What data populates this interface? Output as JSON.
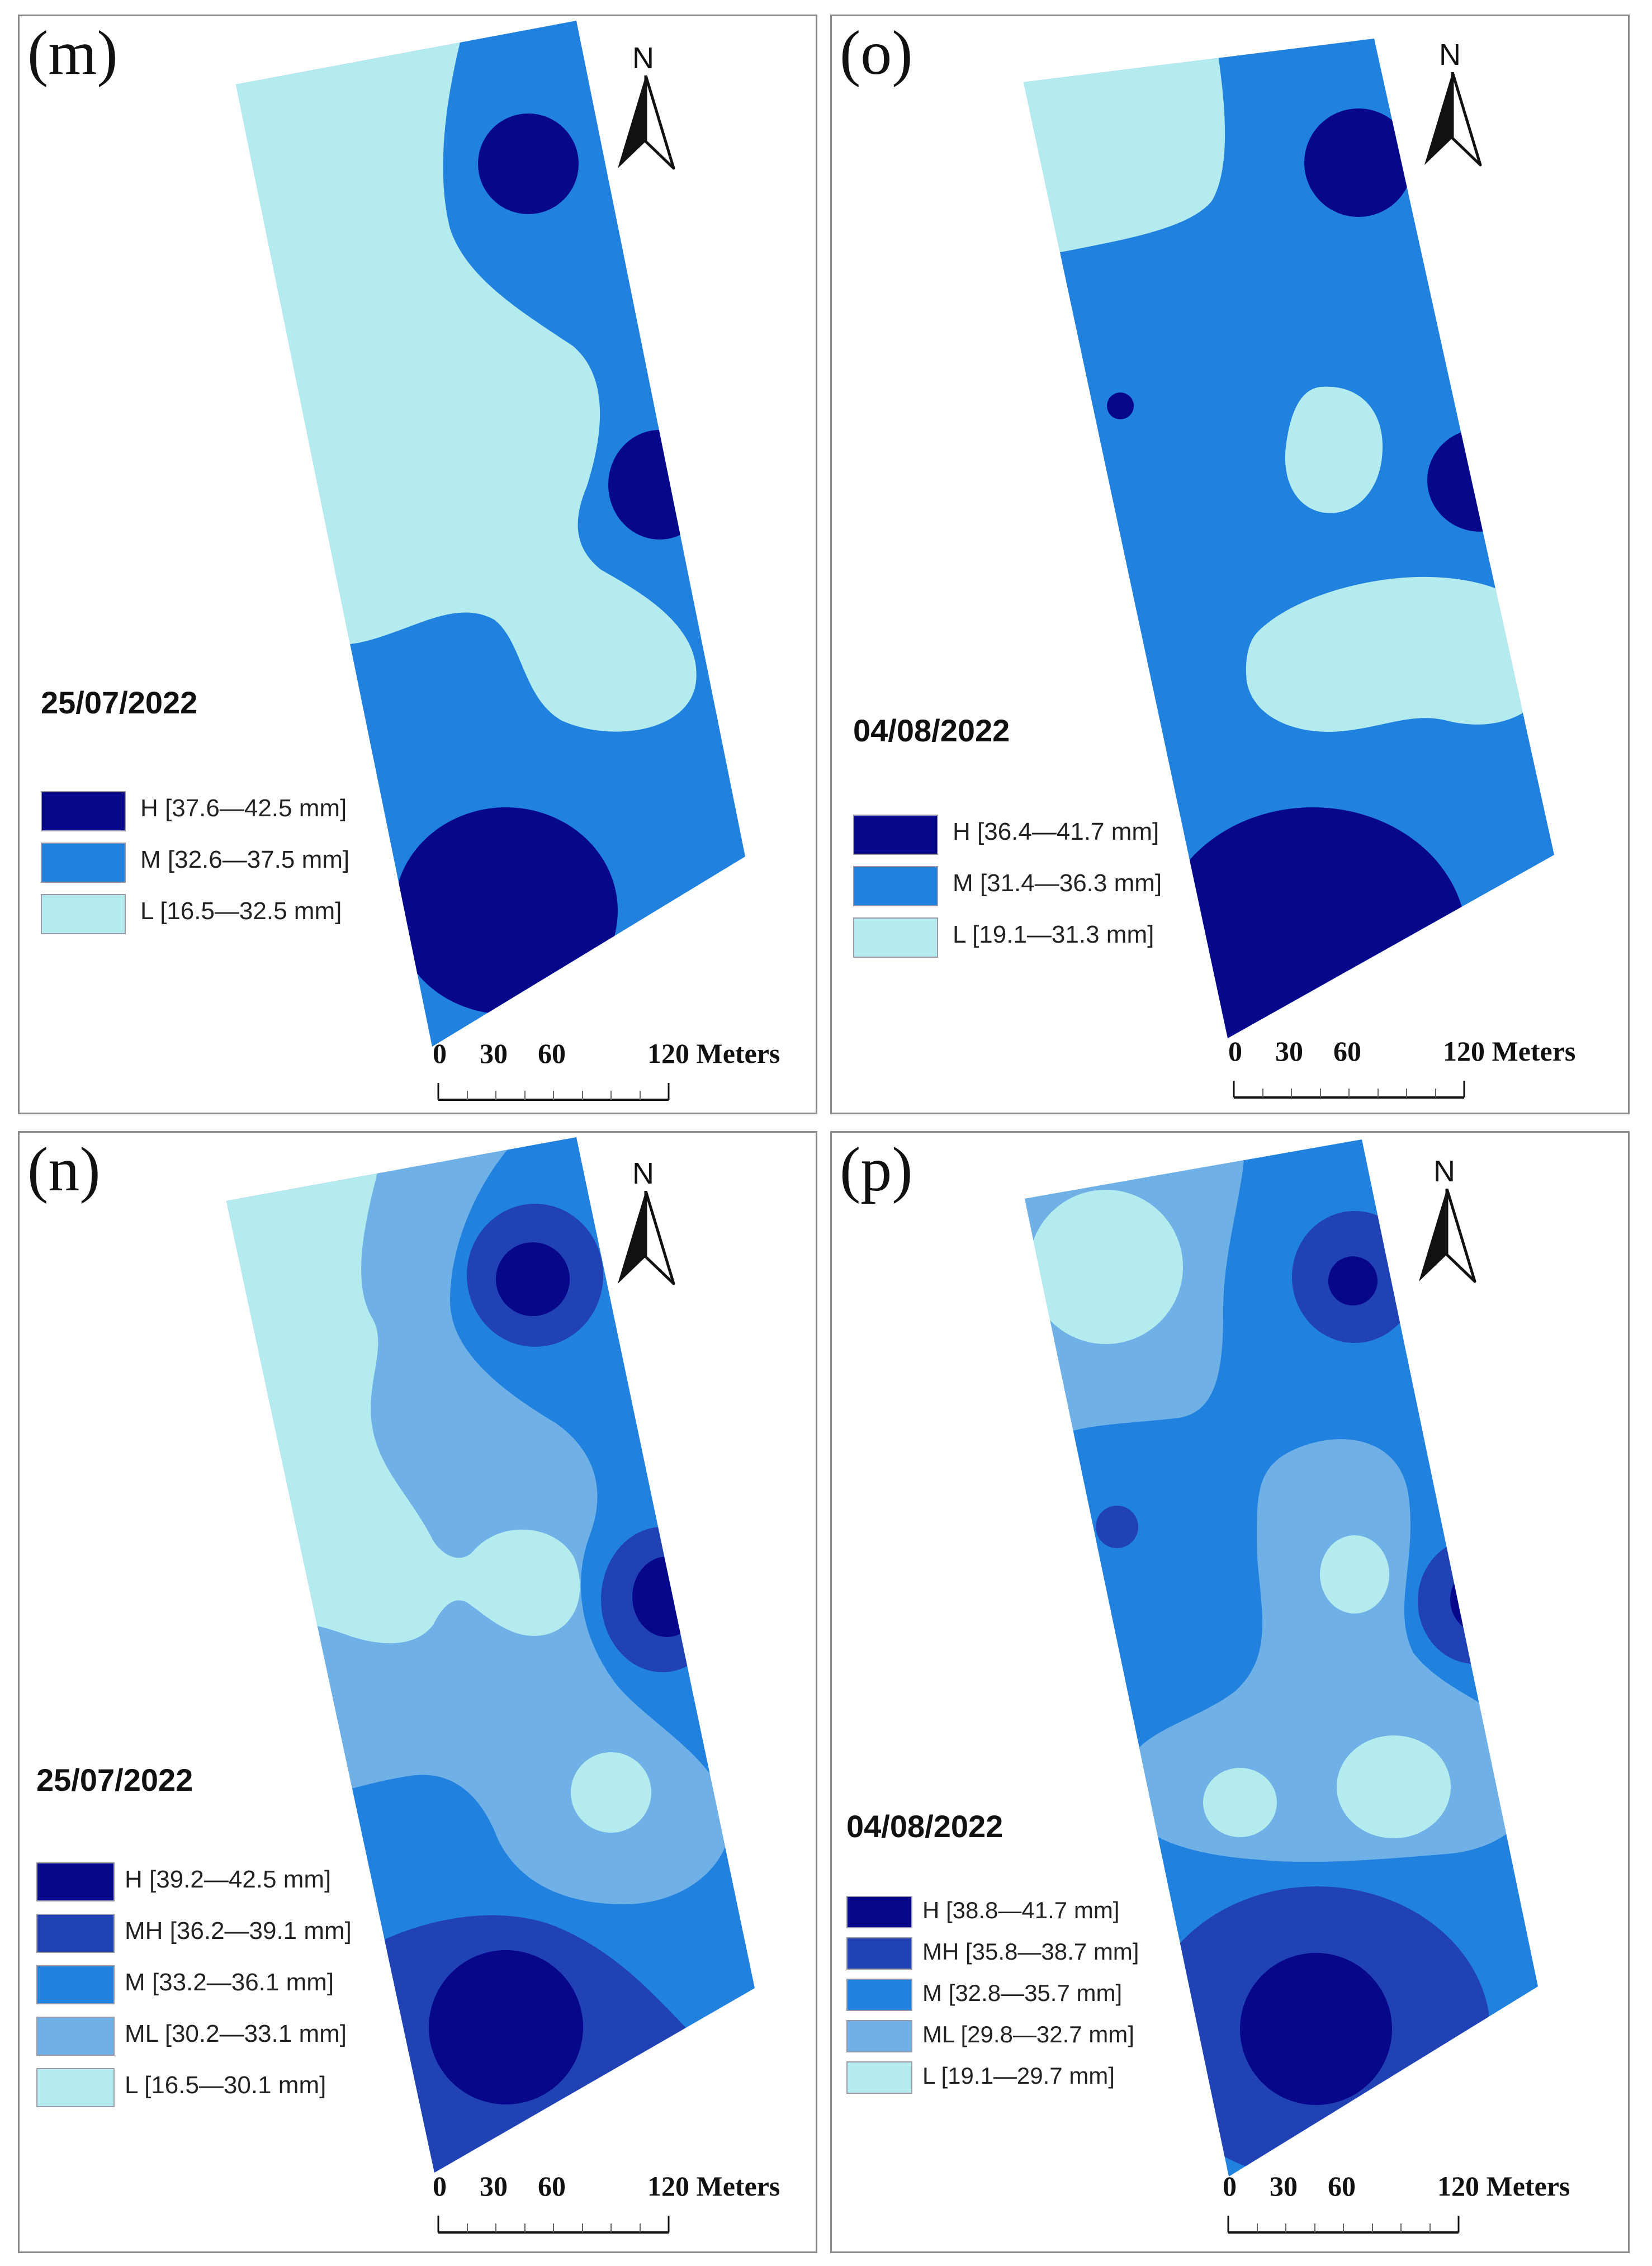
{
  "colors": {
    "H": "#06078a",
    "MH": "#2142b5",
    "M": "#2181de",
    "ML": "#6fb0e6",
    "L": "#b4ebef"
  },
  "north_arrow": {
    "letter": "N"
  },
  "scale_bar": {
    "labels": [
      "0",
      "30",
      "60",
      "120 Meters"
    ]
  },
  "panels": {
    "m": {
      "label": "(m)",
      "date": "25/07/2022",
      "legend": [
        {
          "class": "H",
          "text": "H [37.6—42.5 mm]"
        },
        {
          "class": "M",
          "text": "M [32.6—37.5 mm]"
        },
        {
          "class": "L",
          "text": "L [16.5—32.5 mm]"
        }
      ]
    },
    "o": {
      "label": "(o)",
      "date": "04/08/2022",
      "legend": [
        {
          "class": "H",
          "text": "H [36.4—41.7 mm]"
        },
        {
          "class": "M",
          "text": "M [31.4—36.3 mm]"
        },
        {
          "class": "L",
          "text": "L [19.1—31.3 mm]"
        }
      ]
    },
    "n": {
      "label": "(n)",
      "date": "25/07/2022",
      "legend": [
        {
          "class": "H",
          "text": "H [39.2—42.5 mm]"
        },
        {
          "class": "MH",
          "text": "MH [36.2—39.1 mm]"
        },
        {
          "class": "M",
          "text": "M [33.2—36.1 mm]"
        },
        {
          "class": "ML",
          "text": "ML [30.2—33.1 mm]"
        },
        {
          "class": "L",
          "text": "L [16.5—30.1 mm]"
        }
      ]
    },
    "p": {
      "label": "(p)",
      "date": "04/08/2022",
      "legend": [
        {
          "class": "H",
          "text": "H [38.8—41.7 mm]"
        },
        {
          "class": "MH",
          "text": "MH [35.8—38.7 mm]"
        },
        {
          "class": "M",
          "text": "M [32.8—35.7 mm]"
        },
        {
          "class": "ML",
          "text": "ML [29.8—32.7 mm]"
        },
        {
          "class": "L",
          "text": "L [19.1—29.7 mm]"
        }
      ]
    }
  }
}
